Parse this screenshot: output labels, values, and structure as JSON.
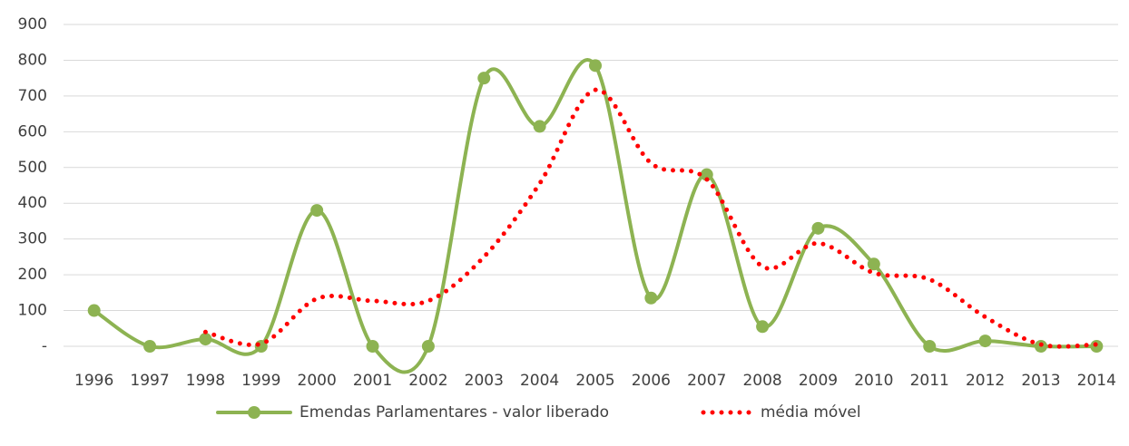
{
  "chart_data": {
    "type": "line",
    "categories": [
      "1996",
      "1997",
      "1998",
      "1999",
      "2000",
      "2001",
      "2002",
      "2003",
      "2004",
      "2005",
      "2006",
      "2007",
      "2008",
      "2009",
      "2010",
      "2011",
      "2012",
      "2013",
      "2014"
    ],
    "series": [
      {
        "name": "Emendas Parlamentares - valor liberado",
        "color": "#8db352",
        "smooth": true,
        "markers": true,
        "dashed": false,
        "values": [
          100,
          0,
          20,
          0,
          380,
          0,
          0,
          750,
          615,
          785,
          135,
          480,
          55,
          330,
          230,
          0,
          15,
          0,
          0
        ]
      },
      {
        "name": "média móvel",
        "color": "#ff0000",
        "smooth": true,
        "markers": false,
        "dashed": true,
        "values": [
          null,
          null,
          40,
          7,
          133,
          127,
          127,
          250,
          455,
          717,
          512,
          467,
          223,
          288,
          205,
          187,
          82,
          5,
          5
        ]
      }
    ],
    "ylim": [
      0,
      900
    ],
    "yticks": [
      {
        "value": 0,
        "label": "-"
      },
      100,
      200,
      300,
      400,
      500,
      600,
      700,
      800,
      900
    ],
    "grid": true,
    "legend": "bottom"
  }
}
